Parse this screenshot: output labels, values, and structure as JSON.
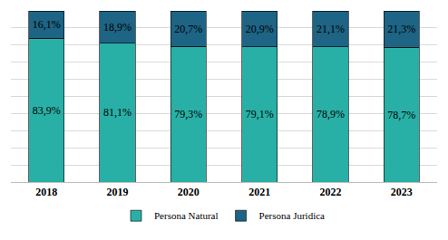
{
  "chart_data": {
    "type": "bar",
    "stacked": true,
    "data_labels": true,
    "grid": true,
    "legend": "bottom",
    "tick_labels": "x",
    "categories": [
      "2018",
      "2019",
      "2020",
      "2021",
      "2022",
      "2023"
    ],
    "series": [
      {
        "name": "Persona Natural",
        "color": "#29b0a6",
        "values": [
          83.9,
          81.1,
          79.3,
          79.1,
          78.9,
          78.7
        ],
        "value_labels": [
          "83,9%",
          "81,1%",
          "79,3%",
          "79,1%",
          "78,9%",
          "78,7%"
        ]
      },
      {
        "name": "Persona Juridica",
        "color": "#1d6485",
        "values": [
          16.1,
          18.9,
          20.7,
          20.9,
          21.1,
          21.3
        ],
        "value_labels": [
          "16,1%",
          "18,9%",
          "20,7%",
          "20,9%",
          "21,1%",
          "21,3%"
        ]
      }
    ],
    "ylim": [
      0,
      100
    ],
    "yticks": [
      0,
      10,
      20,
      30,
      40,
      50,
      60,
      70,
      80,
      90,
      100
    ]
  }
}
